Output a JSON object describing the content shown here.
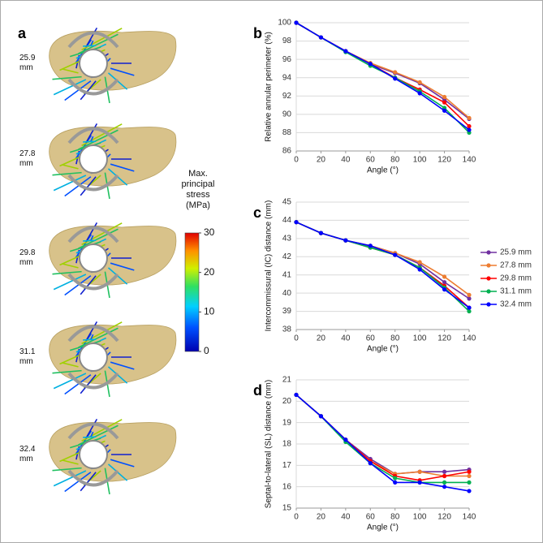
{
  "panel_a": {
    "label": "a",
    "lengths": [
      "25.9 mm",
      "27.8 mm",
      "29.8 mm",
      "31.1 mm",
      "32.4 mm"
    ]
  },
  "colorbar": {
    "title": "Max. principal stress (MPa)",
    "lim": [
      0,
      30
    ],
    "ticks": [
      0,
      10,
      20,
      30
    ]
  },
  "chart_data": [
    {
      "type": "line",
      "label": "b",
      "y_label": "Relative annular perimeter (%)",
      "x_label": "Angle (°)",
      "x": [
        0,
        20,
        40,
        60,
        80,
        100,
        120,
        140
      ],
      "xlim": [
        0,
        140
      ],
      "xticks": [
        0,
        20,
        40,
        60,
        80,
        100,
        120,
        140
      ],
      "ylim": [
        86,
        100
      ],
      "yticks": [
        86,
        88,
        90,
        92,
        94,
        96,
        98,
        100
      ],
      "grid": true,
      "series": [
        {
          "color": "#7030a0",
          "values": [
            100,
            98.4,
            96.9,
            95.5,
            94.5,
            93.4,
            91.6,
            89.5
          ]
        },
        {
          "color": "#ed7d31",
          "values": [
            100,
            98.4,
            96.9,
            95.6,
            94.6,
            93.5,
            91.9,
            89.6
          ]
        },
        {
          "color": "#ff0000",
          "values": [
            100,
            98.4,
            96.9,
            95.5,
            94.0,
            92.7,
            91.3,
            88.7
          ]
        },
        {
          "color": "#00b050",
          "values": [
            100,
            98.4,
            96.8,
            95.3,
            94.0,
            92.5,
            90.7,
            88.0
          ]
        },
        {
          "color": "#0000ff",
          "values": [
            100,
            98.4,
            96.9,
            95.5,
            93.9,
            92.3,
            90.4,
            88.3
          ]
        }
      ]
    },
    {
      "type": "line",
      "label": "c",
      "y_label": "Intercommissural (IC) distance (mm)",
      "x_label": "Angle (°)",
      "x": [
        0,
        20,
        40,
        60,
        80,
        100,
        120,
        140
      ],
      "xlim": [
        0,
        140
      ],
      "xticks": [
        0,
        20,
        40,
        60,
        80,
        100,
        120,
        140
      ],
      "ylim": [
        38,
        45
      ],
      "yticks": [
        38,
        39,
        40,
        41,
        42,
        43,
        44,
        45
      ],
      "grid": true,
      "series": [
        {
          "name": "25.9 mm",
          "color": "#7030a0",
          "values": [
            43.9,
            43.3,
            42.9,
            42.6,
            42.2,
            41.6,
            40.6,
            39.7
          ]
        },
        {
          "name": "27.8 mm",
          "color": "#ed7d31",
          "values": [
            43.9,
            43.3,
            42.9,
            42.6,
            42.2,
            41.7,
            40.9,
            39.9
          ]
        },
        {
          "name": "29.8 mm",
          "color": "#ff0000",
          "values": [
            43.9,
            43.3,
            42.9,
            42.5,
            42.1,
            41.4,
            40.4,
            39.2
          ]
        },
        {
          "name": "31.1 mm",
          "color": "#00b050",
          "values": [
            43.9,
            43.3,
            42.9,
            42.5,
            42.1,
            41.4,
            40.3,
            39.0
          ]
        },
        {
          "name": "32.4 mm",
          "color": "#0000ff",
          "values": [
            43.9,
            43.3,
            42.9,
            42.6,
            42.1,
            41.3,
            40.2,
            39.2
          ]
        }
      ]
    },
    {
      "type": "line",
      "label": "d",
      "y_label": "Septal-to-lateral (SL) distance (mm)",
      "x_label": "Angle (°)",
      "x": [
        0,
        20,
        40,
        60,
        80,
        100,
        120,
        140
      ],
      "xlim": [
        0,
        140
      ],
      "xticks": [
        0,
        20,
        40,
        60,
        80,
        100,
        120,
        140
      ],
      "ylim": [
        15,
        21
      ],
      "yticks": [
        15,
        16,
        17,
        18,
        19,
        20,
        21
      ],
      "grid": true,
      "series": [
        {
          "color": "#7030a0",
          "values": [
            20.3,
            19.3,
            18.2,
            17.3,
            16.6,
            16.7,
            16.7,
            16.8
          ]
        },
        {
          "color": "#ed7d31",
          "values": [
            20.3,
            19.3,
            18.2,
            17.2,
            16.6,
            16.7,
            16.5,
            16.5
          ]
        },
        {
          "color": "#ff0000",
          "values": [
            20.3,
            19.3,
            18.2,
            17.2,
            16.5,
            16.3,
            16.5,
            16.7
          ]
        },
        {
          "color": "#00b050",
          "values": [
            20.3,
            19.3,
            18.1,
            17.1,
            16.4,
            16.2,
            16.2,
            16.2
          ]
        },
        {
          "color": "#0000ff",
          "values": [
            20.3,
            19.3,
            18.2,
            17.1,
            16.2,
            16.2,
            16.0,
            15.8
          ]
        }
      ]
    }
  ]
}
